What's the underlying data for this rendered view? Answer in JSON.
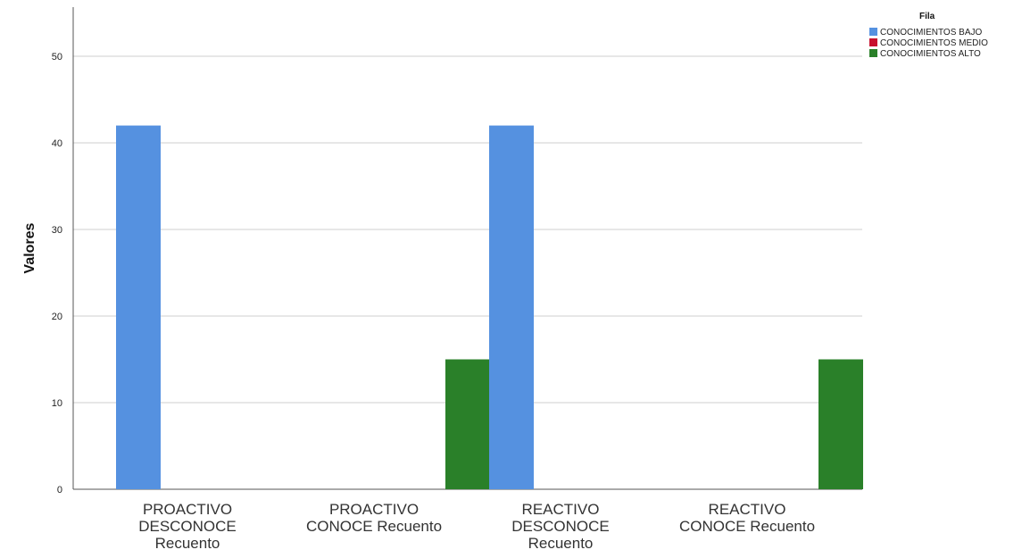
{
  "chart_data": {
    "type": "bar",
    "ylabel": "Valores",
    "ylim": [
      0,
      55
    ],
    "yticks": [
      0,
      10,
      20,
      30,
      40,
      50
    ],
    "grid": true,
    "legend_title": "Fila",
    "legend_position": "top-right",
    "categories": [
      [
        "PROACTIVO",
        "DESCONOCE",
        "Recuento"
      ],
      [
        "PROACTIVO",
        "CONOCE Recuento"
      ],
      [
        "REACTIVO",
        "DESCONOCE",
        "Recuento"
      ],
      [
        "REACTIVO",
        "CONOCE Recuento"
      ]
    ],
    "series": [
      {
        "name": "CONOCIMIENTOS BAJO",
        "color": "#5591e0",
        "values": [
          42,
          0,
          42,
          0
        ]
      },
      {
        "name": "CONOCIMIENTOS MEDIO",
        "color": "#c8102e",
        "values": [
          0,
          0,
          0,
          0
        ]
      },
      {
        "name": "CONOCIMIENTOS ALTO",
        "color": "#2a8029",
        "values": [
          0,
          15,
          0,
          15
        ]
      }
    ]
  }
}
